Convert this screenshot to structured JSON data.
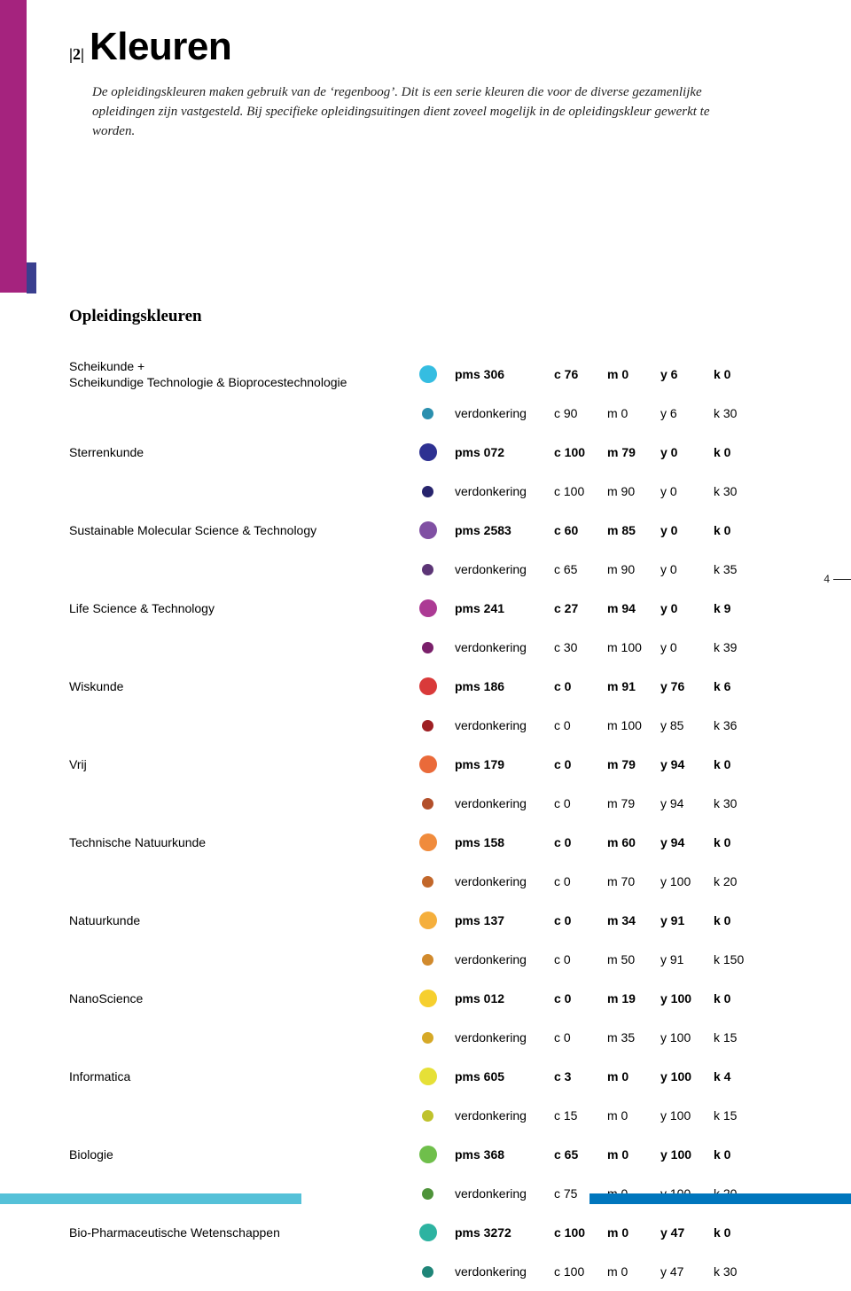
{
  "heading": {
    "chapter_pre": "|",
    "chapter_num": "2",
    "chapter_post": "|",
    "title": "Kleuren"
  },
  "intro": "De opleidingskleuren maken gebruik van de ‘regenboog’. Dit is een serie kleuren die voor de diverse gezamenlijke opleidingen zijn vastgesteld. Bij specifieke opleidingsuitingen dient zoveel mogelijk in de opleidingskleur gewerkt te worden.",
  "section_title": "Opleidingskleuren",
  "page_number": "4",
  "colors": {
    "sidebar_magenta": "#a5237e",
    "sidebar_blue": "#3a3f8f",
    "footer_cyan": "#55c1d8",
    "footer_blue": "#0076bd"
  },
  "rows": [
    {
      "label": "Scheikunde +\nScheikundige Technologie & Bioprocestechnologie",
      "pms": "pms 306",
      "c": "c 76",
      "m": "m 0",
      "y": "y 6",
      "k": "k 0",
      "swatch": "#35bde1",
      "size": "lg",
      "weight": "primary"
    },
    {
      "label": "",
      "pms": "verdonkering",
      "c": "c 90",
      "m": "m 0",
      "y": "y 6",
      "k": "k 30",
      "swatch": "#2a8fae",
      "size": "sm",
      "weight": "secondary"
    },
    {
      "label": "Sterrenkunde",
      "pms": "pms 072",
      "c": "c 100",
      "m": "m 79",
      "y": "y 0",
      "k": "k 0",
      "swatch": "#2e3192",
      "size": "lg",
      "weight": "primary"
    },
    {
      "label": "",
      "pms": "verdonkering",
      "c": "c 100",
      "m": "m 90",
      "y": "y 0",
      "k": "k 30",
      "swatch": "#27246d",
      "size": "sm",
      "weight": "secondary"
    },
    {
      "label": "Sustainable Molecular Science & Technology",
      "pms": "pms 2583",
      "c": "c 60",
      "m": "m 85",
      "y": "y 0",
      "k": "k 0",
      "swatch": "#8050a3",
      "size": "lg",
      "weight": "primary"
    },
    {
      "label": "",
      "pms": "verdonkering",
      "c": "c 65",
      "m": "m 90",
      "y": "y 0",
      "k": "k 35",
      "swatch": "#5c3576",
      "size": "sm",
      "weight": "secondary"
    },
    {
      "label": "Life Science & Technology",
      "pms": "pms 241",
      "c": "c 27",
      "m": "m 94",
      "y": "y 0",
      "k": "k 9",
      "swatch": "#ac3a94",
      "size": "lg",
      "weight": "primary"
    },
    {
      "label": "",
      "pms": "verdonkering",
      "c": "c 30",
      "m": "m 100",
      "y": "y 0",
      "k": "k 39",
      "swatch": "#7a1f6a",
      "size": "sm",
      "weight": "secondary"
    },
    {
      "label": "Wiskunde",
      "pms": "pms 186",
      "c": "c 0",
      "m": "m 91",
      "y": "y 76",
      "k": "k 6",
      "swatch": "#d93a3a",
      "size": "lg",
      "weight": "primary"
    },
    {
      "label": "",
      "pms": "verdonkering",
      "c": "c 0",
      "m": "m 100",
      "y": "y 85",
      "k": "k 36",
      "swatch": "#9e1f23",
      "size": "sm",
      "weight": "secondary"
    },
    {
      "label": "Vrij",
      "pms": "pms 179",
      "c": "c 0",
      "m": "m 79",
      "y": "y 94",
      "k": "k 0",
      "swatch": "#ea6a3a",
      "size": "lg",
      "weight": "primary"
    },
    {
      "label": "",
      "pms": "verdonkering",
      "c": "c 0",
      "m": "m 79",
      "y": "y 94",
      "k": "k 30",
      "swatch": "#b24f2a",
      "size": "sm",
      "weight": "secondary"
    },
    {
      "label": "Technische Natuurkunde",
      "pms": "pms 158",
      "c": "c 0",
      "m": "m 60",
      "y": "y 94",
      "k": "k 0",
      "swatch": "#f08b3c",
      "size": "lg",
      "weight": "primary"
    },
    {
      "label": "",
      "pms": "verdonkering",
      "c": "c 0",
      "m": "m 70",
      "y": "y 100",
      "k": "k 20",
      "swatch": "#c2672a",
      "size": "sm",
      "weight": "secondary"
    },
    {
      "label": "Natuurkunde",
      "pms": "pms 137",
      "c": "c 0",
      "m": "m 34",
      "y": "y 91",
      "k": "k 0",
      "swatch": "#f5af3c",
      "size": "lg",
      "weight": "primary"
    },
    {
      "label": "",
      "pms": "verdonkering",
      "c": "c 0",
      "m": "m 50",
      "y": "y 91",
      "k": "k 150",
      "swatch": "#d18a2d",
      "size": "sm",
      "weight": "secondary"
    },
    {
      "label": "NanoScience",
      "pms": "pms 012",
      "c": "c 0",
      "m": "m 19",
      "y": "y 100",
      "k": "k 0",
      "swatch": "#f6cf2e",
      "size": "lg",
      "weight": "primary"
    },
    {
      "label": "",
      "pms": "verdonkering",
      "c": "c 0",
      "m": "m 35",
      "y": "y 100",
      "k": "k 15",
      "swatch": "#d6a927",
      "size": "sm",
      "weight": "secondary"
    },
    {
      "label": "Informatica",
      "pms": "pms 605",
      "c": "c 3",
      "m": "m 0",
      "y": "y 100",
      "k": "k 4",
      "swatch": "#e6e037",
      "size": "lg",
      "weight": "primary"
    },
    {
      "label": "",
      "pms": "verdonkering",
      "c": "c 15",
      "m": "m 0",
      "y": "y 100",
      "k": "k 15",
      "swatch": "#bfc22c",
      "size": "sm",
      "weight": "secondary"
    },
    {
      "label": "Biologie",
      "pms": "pms 368",
      "c": "c 65",
      "m": "m 0",
      "y": "y 100",
      "k": "k 0",
      "swatch": "#6fbf4b",
      "size": "lg",
      "weight": "primary"
    },
    {
      "label": "",
      "pms": "verdonkering",
      "c": "c 75",
      "m": "m 0",
      "y": "y 100",
      "k": "k 20",
      "swatch": "#4e933a",
      "size": "sm",
      "weight": "secondary"
    },
    {
      "label": "Bio-Pharmaceutische Wetenschappen",
      "pms": "pms 3272",
      "c": "c 100",
      "m": "m 0",
      "y": "y 47",
      "k": "k 0",
      "swatch": "#2db3a1",
      "size": "lg",
      "weight": "primary"
    },
    {
      "label": "",
      "pms": "verdonkering",
      "c": "c 100",
      "m": "m 0",
      "y": "y 47",
      "k": "k 30",
      "swatch": "#1f8578",
      "size": "sm",
      "weight": "secondary"
    }
  ]
}
